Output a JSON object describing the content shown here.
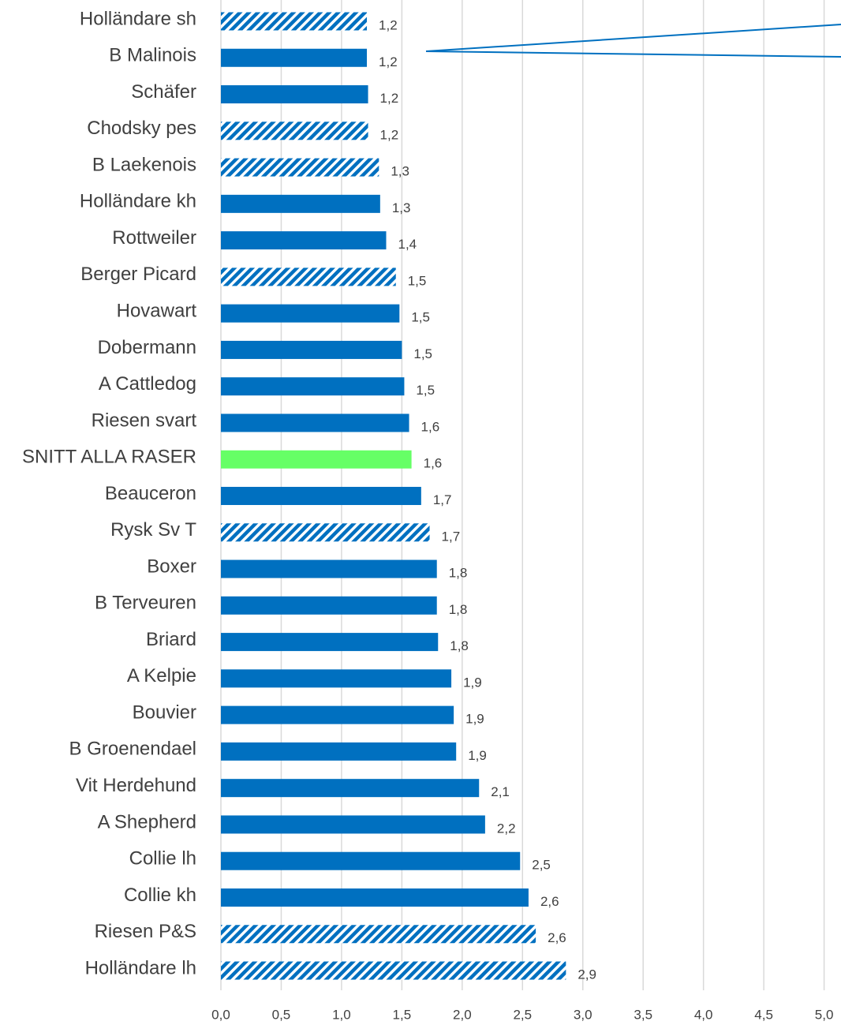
{
  "chart_data": {
    "type": "hbar",
    "categories": [
      "Holländare sh",
      "B Malinois",
      "Schäfer",
      "Chodsky pes",
      "B Laekenois",
      "Holländare kh",
      "Rottweiler",
      "Berger Picard",
      "Hovawart",
      "Dobermann",
      "A Cattledog",
      "Riesen svart",
      "SNITT ALLA RASER",
      "Beauceron",
      "Rysk Sv T",
      "Boxer",
      "B Terveuren",
      "Briard",
      "A Kelpie",
      "Bouvier",
      "B Groenendael",
      "Vit Herdehund",
      "A Shepherd",
      "Collie lh",
      "Collie kh",
      "Riesen P&S",
      "Holländare lh"
    ],
    "values": [
      1.21,
      1.21,
      1.22,
      1.22,
      1.31,
      1.32,
      1.37,
      1.45,
      1.48,
      1.5,
      1.52,
      1.56,
      1.58,
      1.66,
      1.73,
      1.79,
      1.79,
      1.8,
      1.91,
      1.93,
      1.95,
      2.14,
      2.19,
      2.48,
      2.55,
      2.61,
      2.86
    ],
    "value_labels": [
      "1,2",
      "1,2",
      "1,2",
      "1,2",
      "1,3",
      "1,3",
      "1,4",
      "1,5",
      "1,5",
      "1,5",
      "1,5",
      "1,6",
      "1,6",
      "1,7",
      "1,7",
      "1,8",
      "1,8",
      "1,8",
      "1,9",
      "1,9",
      "1,9",
      "2,1",
      "2,2",
      "2,5",
      "2,6",
      "2,6",
      "2,9"
    ],
    "colors": [
      "#0070c0",
      "#0070c0",
      "#0070c0",
      "#0070c0",
      "#0070c0",
      "#0070c0",
      "#0070c0",
      "#0070c0",
      "#0070c0",
      "#0070c0",
      "#0070c0",
      "#0070c0",
      "#66ff66",
      "#0070c0",
      "#0070c0",
      "#0070c0",
      "#0070c0",
      "#0070c0",
      "#0070c0",
      "#0070c0",
      "#0070c0",
      "#0070c0",
      "#0070c0",
      "#0070c0",
      "#0070c0",
      "#0070c0",
      "#0070c0"
    ],
    "hatched": [
      true,
      false,
      false,
      true,
      true,
      false,
      false,
      true,
      false,
      false,
      false,
      false,
      false,
      false,
      true,
      false,
      false,
      false,
      false,
      false,
      false,
      false,
      false,
      false,
      false,
      true,
      true
    ],
    "xlim": [
      0,
      5.14
    ],
    "xticks": [
      {
        "value": 0,
        "label": "0,0"
      },
      {
        "value": 0.5,
        "label": "0,5"
      },
      {
        "value": 1,
        "label": "1,0"
      },
      {
        "value": 1.5,
        "label": "1,5"
      },
      {
        "value": 2,
        "label": "2,0"
      },
      {
        "value": 2.5,
        "label": "2,5"
      },
      {
        "value": 3,
        "label": "3,0"
      },
      {
        "value": 3.5,
        "label": "3,5"
      },
      {
        "value": 4,
        "label": "4,0"
      },
      {
        "value": 4.5,
        "label": "4,5"
      },
      {
        "value": 5,
        "label": "5,0"
      }
    ],
    "grid": true
  }
}
